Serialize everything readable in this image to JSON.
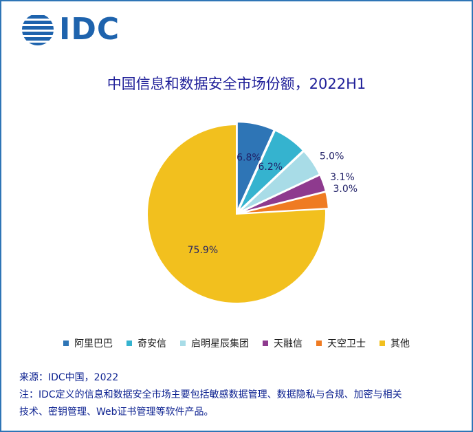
{
  "logo": {
    "text": "IDC"
  },
  "chart_data": {
    "type": "pie",
    "title": "中国信息和数据安全市场份额，2022H1",
    "categories": [
      "阿里巴巴",
      "奇安信",
      "启明星辰集团",
      "天融信",
      "天空卫士",
      "其他"
    ],
    "values": [
      6.8,
      6.2,
      5.0,
      3.1,
      3.0,
      75.9
    ],
    "labels": [
      "6.8%",
      "6.2%",
      "5.0%",
      "3.1%",
      "3.0%",
      "75.9%"
    ],
    "colors": [
      "#2e75b6",
      "#35b3cf",
      "#a8dce7",
      "#8e3a8e",
      "#ef7b22",
      "#f2c01e"
    ],
    "legend_position": "bottom"
  },
  "footer": {
    "source": "来源：IDC中国，2022",
    "note_line1": "注：IDC定义的信息和数据安全市场主要包括敏感数据管理、数据隐私与合规、加密与相关",
    "note_line2": "技术、密钥管理、Web证书管理等软件产品。"
  }
}
